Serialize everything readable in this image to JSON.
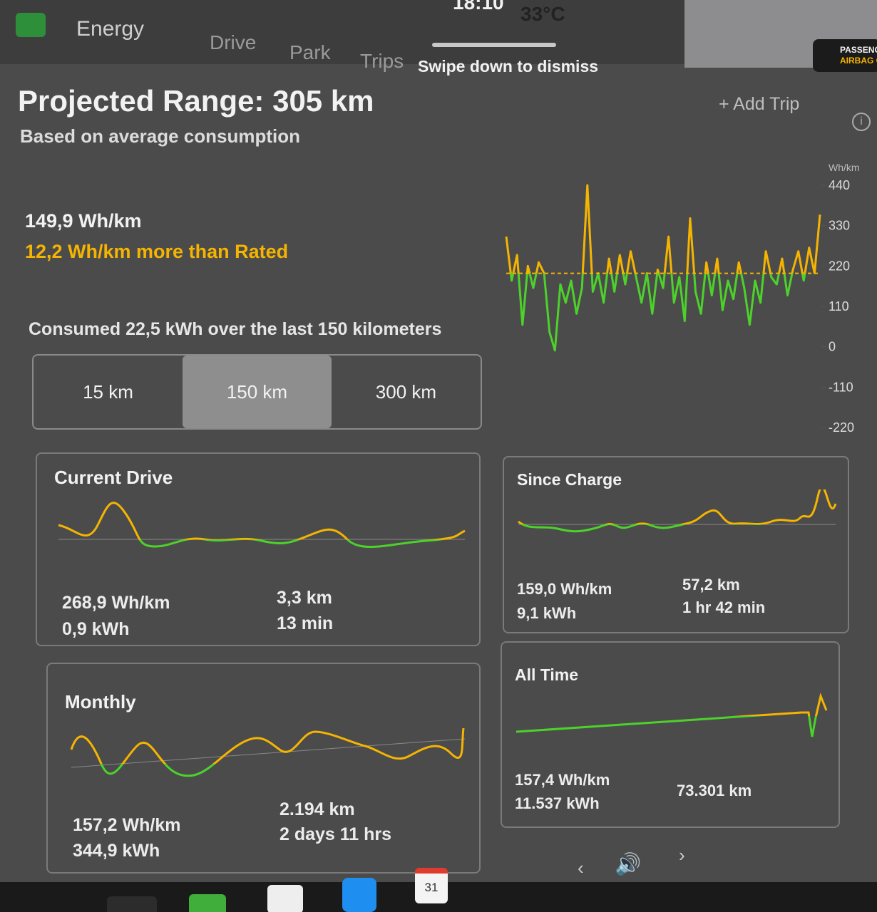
{
  "status": {
    "time": "18:10",
    "temperature": "33°C",
    "airbag": [
      "PASSENG",
      "AIRBAG O"
    ]
  },
  "tabs": [
    "Energy",
    "Drive",
    "Park",
    "Trips"
  ],
  "dismiss_hint": "Swipe down to dismiss",
  "add_trip": "Add Trip",
  "header": {
    "title": "Projected Range: 305 km",
    "subtitle": "Based on average consumption"
  },
  "efficiency": {
    "average": "149,9 Wh/km",
    "comparison": "12,2 Wh/km more than Rated"
  },
  "consumed": "Consumed 22,5 kWh over the last 150 kilometers",
  "range_options": [
    "15 km",
    "150 km",
    "300 km"
  ],
  "chart_data": {
    "type": "line",
    "y_label": "Wh/km",
    "ylim": [
      -220,
      440
    ],
    "yticks": [
      440,
      330,
      220,
      110,
      0,
      -110,
      -220
    ],
    "reference_line": 200,
    "above_color": "#f5b400",
    "below_color": "#4cd22a",
    "series": [
      {
        "values": [
          300,
          180,
          250,
          60,
          220,
          160,
          230,
          200,
          40,
          -10,
          170,
          120,
          180,
          90,
          160,
          440,
          150,
          200,
          120,
          240,
          150,
          250,
          170,
          260,
          190,
          120,
          200,
          90,
          210,
          160,
          300,
          120,
          190,
          70,
          350,
          150,
          90,
          230,
          140,
          240,
          100,
          180,
          130,
          230,
          160,
          60,
          180,
          120,
          260,
          190,
          170,
          240,
          140,
          210,
          260,
          180,
          270,
          200,
          360
        ]
      }
    ]
  },
  "cards": [
    {
      "title": "Current Drive",
      "stats": [
        "268,9 Wh/km",
        "0,9 kWh",
        "3,3 km",
        "13 min"
      ]
    },
    {
      "title": "Since Charge",
      "stats": [
        "159,0 Wh/km",
        "9,1 kWh",
        "57,2 km",
        "1 hr 42 min"
      ]
    },
    {
      "title": "Monthly",
      "stats": [
        "157,2 Wh/km",
        "344,9 kWh",
        "2.194 km",
        "2 days 11 hrs"
      ]
    },
    {
      "title": "All Time",
      "stats": [
        "157,4 Wh/km",
        "11.537 kWh",
        "73.301 km"
      ]
    }
  ],
  "taskbar": {
    "calendar_day": "31"
  }
}
